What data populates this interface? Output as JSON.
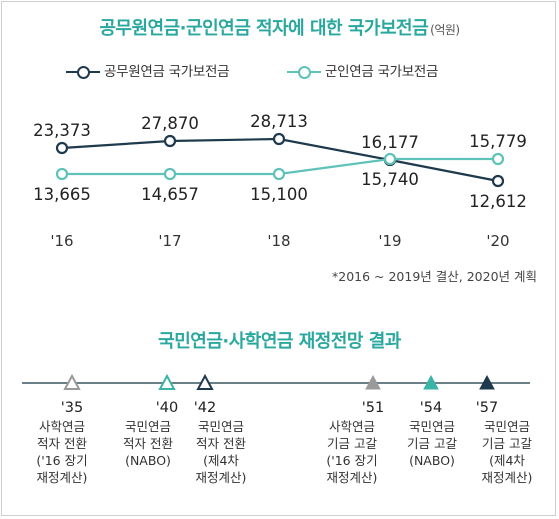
{
  "chart_data": [
    {
      "type": "line",
      "title": "공무원연금·군인연금 적자에 대한 국가보전금",
      "unit": "(억원)",
      "categories": [
        "'16",
        "'17",
        "'18",
        "'19",
        "'20"
      ],
      "series": [
        {
          "name": "공무원연금 국가보전금",
          "values": [
            23373,
            27870,
            28713,
            16177,
            12612
          ],
          "labels": [
            "23,373",
            "27,870",
            "28,713",
            "16,177",
            "12,612"
          ],
          "color": "#1f3a4d"
        },
        {
          "name": "군인연금 국가보전금",
          "values": [
            13665,
            14657,
            15100,
            15740,
            15779
          ],
          "labels": [
            "13,665",
            "14,657",
            "15,100",
            "15,740",
            "15,779"
          ],
          "color": "#5fc2b8"
        }
      ],
      "note": "*2016 ~ 2019년 결산, 2020년 계획"
    },
    {
      "type": "timeline",
      "title": "국민연금·사학연금 재정전망 결과",
      "events": [
        {
          "year": "'35",
          "lines": [
            "사학연금",
            "적자 전환",
            "('16 장기",
            "재정계산)"
          ],
          "marker": "open",
          "color": "#9a9a9a"
        },
        {
          "year": "'40",
          "lines": [
            "국민연금",
            "적자 전환",
            "(NABO)"
          ],
          "marker": "open",
          "color": "#3ab3a8"
        },
        {
          "year": "'42",
          "lines": [
            "국민연금",
            "적자 전환",
            "(제4차",
            "재정계산)"
          ],
          "marker": "open",
          "color": "#1f3a4d"
        },
        {
          "year": "'51",
          "lines": [
            "사학연금",
            "기금 고갈",
            "('16 장기",
            "재정계산)"
          ],
          "marker": "filled",
          "color": "#9a9a9a"
        },
        {
          "year": "'54",
          "lines": [
            "국민연금",
            "기금 고갈",
            "(NABO)"
          ],
          "marker": "filled",
          "color": "#3ab3a8"
        },
        {
          "year": "'57",
          "lines": [
            "국민연금",
            "기금 고갈",
            "(제4차",
            "재정계산)"
          ],
          "marker": "filled",
          "color": "#1f3a4d"
        }
      ]
    }
  ]
}
